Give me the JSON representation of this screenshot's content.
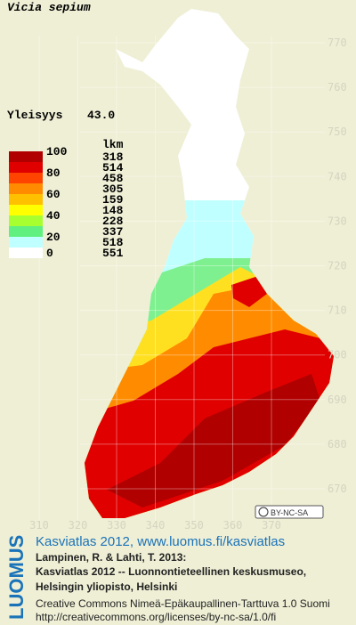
{
  "map": {
    "title": "Vicia sepium",
    "frequency_label": "Yleisyys",
    "frequency_value": "43.0",
    "legend": {
      "count_header": "lkm",
      "class_labels": [
        "100",
        "80",
        "60",
        "40",
        "20",
        "0"
      ],
      "colors": [
        "#b00000",
        "#e00000",
        "#ff4400",
        "#ff8c00",
        "#ffc000",
        "#ffff00",
        "#a8ff30",
        "#60f080",
        "#c0ffff",
        "#ffffff"
      ],
      "counts": [
        318,
        514,
        458,
        305,
        159,
        148,
        228,
        337,
        518,
        551
      ]
    },
    "northing_ticks": [
      770,
      760,
      750,
      740,
      730,
      720,
      710,
      700,
      690,
      680,
      670
    ],
    "easting_ticks": [
      310,
      320,
      330,
      340,
      350,
      360,
      370
    ],
    "license_badge": "BY-NC-SA",
    "logo": "LUOMUS",
    "credits": {
      "atlas_link": "Kasviatlas 2012, www.luomus.fi/kasviatlas",
      "citation_1": "Lampinen, R. & Lahti, T. 2013:",
      "citation_2": "Kasviatlas 2012 -- Luonnontieteellinen keskusmuseo,",
      "citation_3": "Helsingin yliopisto, Helsinki",
      "license": "Creative Commons Nimeä-Epäkaupallinen-Tarttuva 1.0 Suomi",
      "license_url": "http://creativecommons.org/licenses/by-nc-sa/1.0/fi"
    }
  }
}
